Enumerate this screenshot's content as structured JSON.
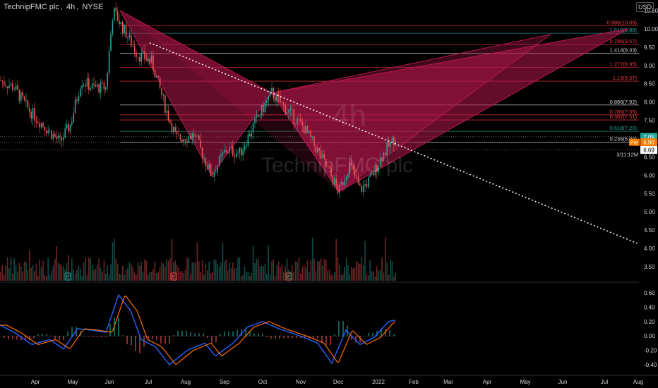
{
  "header": {
    "symbol_name": "TechnipFMC plc",
    "interval": "4h",
    "exchange": "NYSE"
  },
  "currency_label": "USD",
  "watermark": {
    "name": "TechnipFMC plc",
    "interval": "4h"
  },
  "price_scale": {
    "ticks": [
      "10.50",
      "10.00",
      "9.50",
      "9.00",
      "8.50",
      "8.00",
      "7.50",
      "7.00",
      "6.50",
      "6.00",
      "5.50",
      "5.00",
      "4.50",
      "4.00",
      "3.50"
    ],
    "tick_values": [
      10.5,
      10.0,
      9.5,
      9.0,
      8.5,
      8.0,
      7.5,
      7.0,
      6.5,
      6.0,
      5.5,
      5.0,
      4.5,
      4.0,
      3.5
    ]
  },
  "price_badges": [
    {
      "label": "7.05",
      "color": "#26a69a",
      "value": 7.05
    },
    {
      "label": "6.90",
      "color": "#f57c00",
      "value": 6.9
    },
    {
      "label": "6.69",
      "color": "#ffffff",
      "value": 6.69
    }
  ],
  "countdown_label": "3/11:12M",
  "pre_label": "Pre",
  "fib_levels": [
    {
      "label": "0.886(10.09)",
      "value": 10.09,
      "color": "#f23645"
    },
    {
      "label": "1.618(9.88)",
      "value": 9.88,
      "color": "#26a69a"
    },
    {
      "label": "0.786(9.57)",
      "value": 9.57,
      "color": "#f23645"
    },
    {
      "label": "1.414(9.33)",
      "value": 9.33,
      "color": "#d1d4dc"
    },
    {
      "label": "1.272(8.95)",
      "value": 8.95,
      "color": "#f23645"
    },
    {
      "label": "1.13(8.57)",
      "value": 8.57,
      "color": "#f23645"
    },
    {
      "label": "0.886(7.92)",
      "value": 7.92,
      "color": "#d1d4dc"
    },
    {
      "label": "0.786(7.65)",
      "value": 7.65,
      "color": "#f23645"
    },
    {
      "label": "0.382(7.51)",
      "value": 7.51,
      "color": "#f23645"
    },
    {
      "label": "0.618(7.20)",
      "value": 7.2,
      "color": "#26a69a"
    },
    {
      "label": "0.236(6.90)",
      "value": 6.9,
      "color": "#d1d4dc"
    }
  ],
  "time_axis": [
    "Apr",
    "May",
    "Jun",
    "Jul",
    "Aug",
    "Sep",
    "Oct",
    "Nov",
    "Dec",
    "2022",
    "Feb",
    "Mar",
    "Apr",
    "May",
    "Jun",
    "Jul",
    "Aug"
  ],
  "macd_scale": [
    "0.60",
    "0.40",
    "0.20",
    "0.00",
    "-0.20",
    "-0.40"
  ],
  "macd_values": [
    0.6,
    0.4,
    0.2,
    0.0,
    -0.2,
    -0.4
  ],
  "event_markers": [
    "E",
    "E",
    "E"
  ],
  "colors": {
    "background": "#000000",
    "up": "#26a69a",
    "down": "#ef5350",
    "pattern": "#b7174e",
    "trendline": "#ffffff",
    "macd": "#2962ff",
    "signal": "#ff6d00"
  }
}
